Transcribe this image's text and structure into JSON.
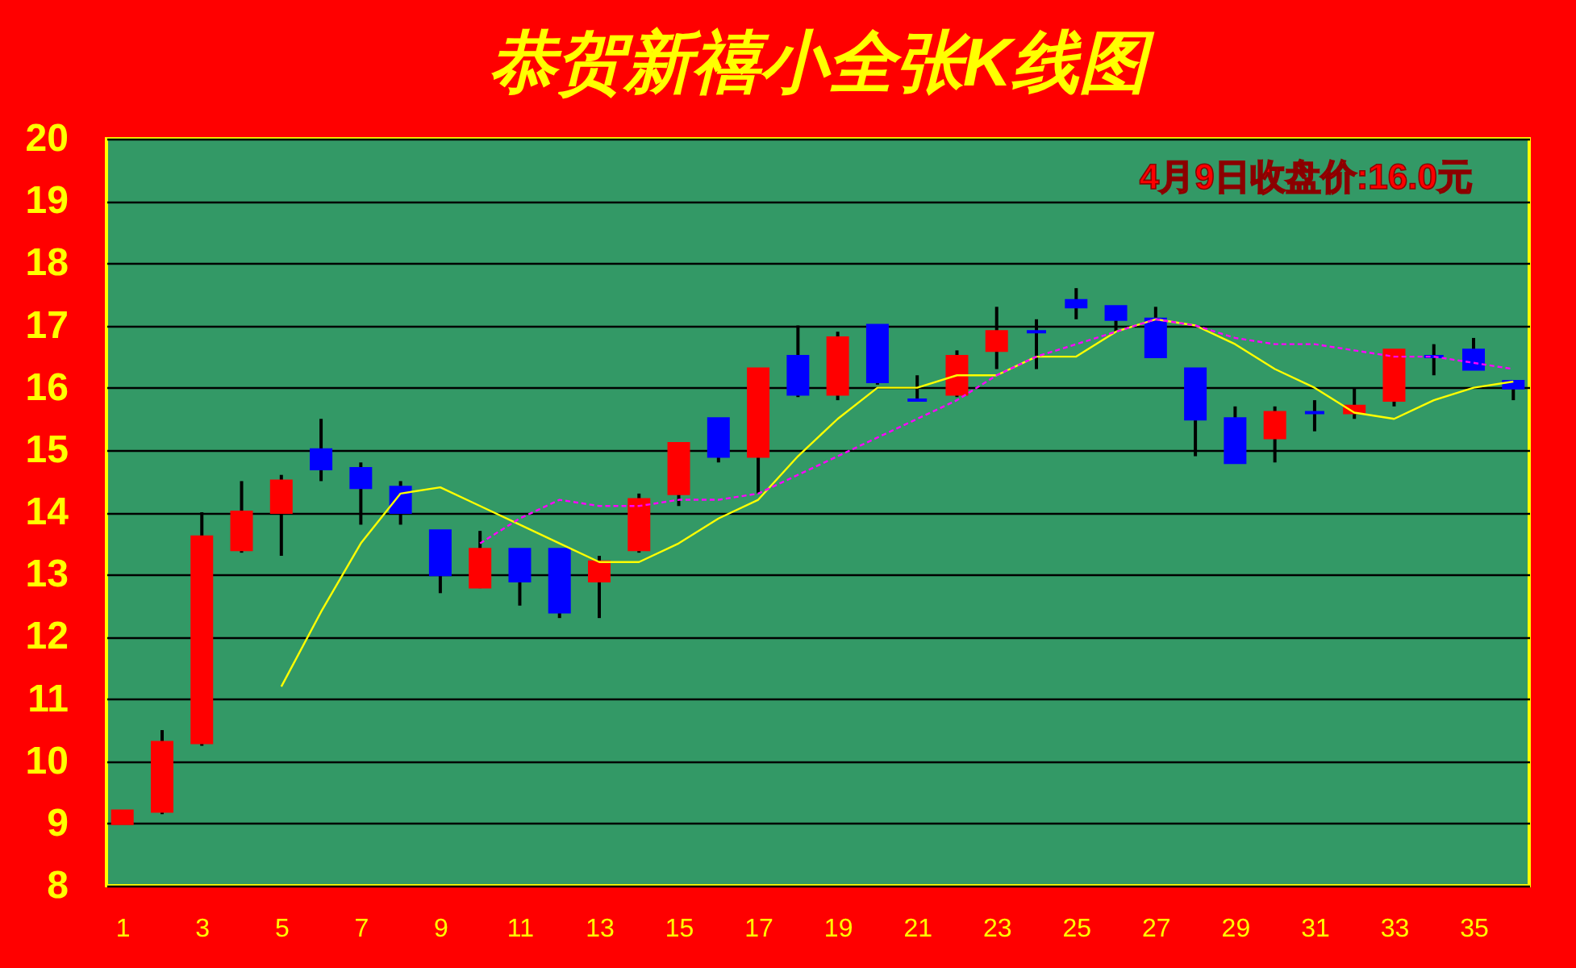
{
  "chart_data": {
    "type": "candlestick",
    "title": "恭贺新禧小全张K线图",
    "annotations": [
      "4月9日收盘价:16.0元"
    ],
    "x": [
      1,
      2,
      3,
      4,
      5,
      6,
      7,
      8,
      9,
      10,
      11,
      12,
      13,
      14,
      15,
      16,
      17,
      18,
      19,
      20,
      21,
      22,
      23,
      24,
      25,
      26,
      27,
      28,
      29,
      30,
      31,
      32,
      33,
      34,
      35,
      36
    ],
    "ohlc": [
      [
        9.0,
        9.2,
        9.0,
        9.2
      ],
      [
        9.2,
        10.5,
        9.15,
        10.3
      ],
      [
        10.3,
        14.0,
        10.25,
        13.6
      ],
      [
        13.4,
        14.5,
        13.35,
        14.0
      ],
      [
        14.0,
        14.6,
        13.3,
        14.5
      ],
      [
        15.0,
        15.5,
        14.5,
        14.7
      ],
      [
        14.7,
        14.8,
        13.8,
        14.4
      ],
      [
        14.4,
        14.5,
        13.8,
        14.0
      ],
      [
        13.7,
        13.7,
        12.7,
        13.0
      ],
      [
        12.8,
        13.7,
        12.78,
        13.4
      ],
      [
        13.4,
        13.4,
        12.5,
        12.9
      ],
      [
        13.4,
        13.4,
        12.3,
        12.4
      ],
      [
        12.9,
        13.3,
        12.3,
        13.2
      ],
      [
        13.4,
        14.3,
        13.35,
        14.2
      ],
      [
        14.3,
        15.1,
        14.1,
        15.1
      ],
      [
        15.5,
        15.5,
        14.8,
        14.9
      ],
      [
        14.9,
        16.3,
        14.3,
        16.3
      ],
      [
        16.5,
        17.0,
        15.85,
        15.9
      ],
      [
        15.9,
        16.9,
        15.8,
        16.8
      ],
      [
        17.0,
        17.0,
        16.05,
        16.1
      ],
      [
        15.8,
        16.2,
        15.8,
        15.8
      ],
      [
        15.9,
        16.6,
        15.85,
        16.5
      ],
      [
        16.6,
        17.3,
        16.3,
        16.9
      ],
      [
        16.9,
        17.1,
        16.3,
        16.9
      ],
      [
        17.4,
        17.6,
        17.1,
        17.3
      ],
      [
        17.3,
        17.3,
        16.9,
        17.1
      ],
      [
        17.1,
        17.3,
        16.5,
        16.5
      ],
      [
        16.3,
        16.3,
        14.9,
        15.5
      ],
      [
        15.5,
        15.7,
        14.8,
        14.8
      ],
      [
        15.2,
        15.7,
        14.8,
        15.6
      ],
      [
        15.6,
        15.8,
        15.3,
        15.6
      ],
      [
        15.6,
        16.0,
        15.5,
        15.7
      ],
      [
        15.8,
        16.6,
        15.7,
        16.6
      ],
      [
        16.5,
        16.7,
        16.2,
        16.5
      ],
      [
        16.6,
        16.8,
        16.3,
        16.3
      ],
      [
        16.1,
        16.1,
        15.8,
        16.0
      ]
    ],
    "colors": [
      "#ff0000",
      "#ff0000",
      "#ff0000",
      "#ff0000",
      "#ff0000",
      "#0000ff",
      "#0000ff",
      "#0000ff",
      "#0000ff",
      "#ff0000",
      "#0000ff",
      "#0000ff",
      "#ff0000",
      "#ff0000",
      "#ff0000",
      "#0000ff",
      "#ff0000",
      "#0000ff",
      "#ff0000",
      "#0000ff",
      "#0000ff",
      "#ff0000",
      "#ff0000",
      "#0000ff",
      "#0000ff",
      "#0000ff",
      "#0000ff",
      "#0000ff",
      "#0000ff",
      "#ff0000",
      "#0000ff",
      "#ff0000",
      "#ff0000",
      "#0000ff",
      "#0000ff",
      "#0000ff"
    ],
    "series": [
      {
        "type": "line",
        "color": "#ffff00",
        "x": [
          5,
          6,
          7,
          8,
          9,
          10,
          11,
          12,
          13,
          14,
          15,
          16,
          17,
          18,
          19,
          20,
          21,
          22,
          23,
          24,
          25,
          26,
          27,
          28,
          29,
          30,
          31,
          32,
          33,
          34,
          35,
          36
        ],
        "values": [
          11.2,
          12.4,
          13.5,
          14.3,
          14.4,
          14.1,
          13.8,
          13.5,
          13.2,
          13.2,
          13.5,
          13.9,
          14.2,
          14.9,
          15.5,
          16.0,
          16.0,
          16.2,
          16.2,
          16.5,
          16.5,
          16.9,
          17.1,
          17.0,
          16.7,
          16.3,
          16.0,
          15.6,
          15.5,
          15.8,
          16.0,
          16.1
        ]
      },
      {
        "type": "line",
        "color": "#ff00ff",
        "line_style": "dashed",
        "x": [
          10,
          11,
          12,
          13,
          14,
          15,
          16,
          17,
          18,
          19,
          20,
          21,
          22,
          23,
          24,
          25,
          26,
          27,
          28,
          29,
          30,
          31,
          32,
          33,
          34,
          35,
          36
        ],
        "values": [
          13.5,
          13.9,
          14.2,
          14.1,
          14.1,
          14.2,
          14.2,
          14.3,
          14.6,
          14.9,
          15.2,
          15.5,
          15.8,
          16.2,
          16.5,
          16.7,
          16.9,
          17.1,
          17.0,
          16.8,
          16.7,
          16.7,
          16.6,
          16.5,
          16.5,
          16.4,
          16.3
        ]
      }
    ],
    "xlim": [
      0.6,
      36.4
    ],
    "xticks": [
      1,
      3,
      5,
      7,
      9,
      11,
      13,
      15,
      17,
      19,
      21,
      23,
      25,
      27,
      29,
      31,
      33,
      35
    ],
    "ylim": [
      8,
      20
    ],
    "yticks": [
      8,
      9,
      10,
      11,
      12,
      13,
      14,
      15,
      16,
      17,
      18,
      19,
      20
    ],
    "grid": "y"
  }
}
